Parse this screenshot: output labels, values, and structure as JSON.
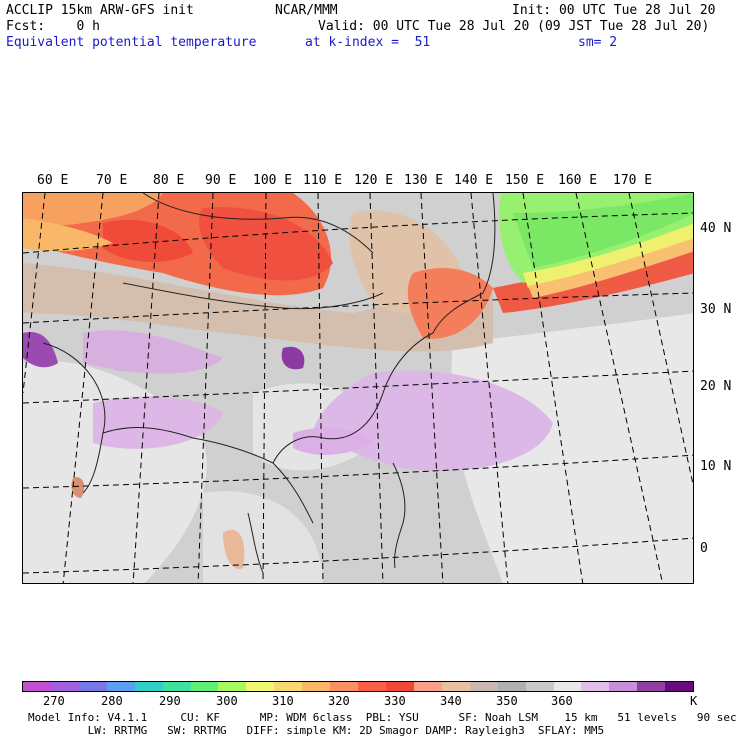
{
  "header": {
    "model_line": "ACCLIP 15km ARW-GFS init",
    "org": "NCAR/MMM",
    "init": "Init: 00 UTC Tue 28 Jul 20",
    "fcst": "Fcst:    0 h",
    "valid": "Valid: 00 UTC Tue 28 Jul 20 (09 JST Tue 28 Jul 20)",
    "variable": "Equivalent potential temperature",
    "level": "at k-index =  51",
    "smoothing": "sm= 2"
  },
  "map": {
    "lon_labels": [
      "60 E",
      "70 E",
      "80 E",
      "90 E",
      "100 E",
      "110 E",
      "120 E",
      "130 E",
      "140 E",
      "150 E",
      "160 E",
      "170 E"
    ],
    "lat_labels": [
      "40 N",
      "30 N",
      "20 N",
      "10 N",
      "0"
    ]
  },
  "colorbar": {
    "colors": [
      "#c050d0",
      "#a060e0",
      "#7878e8",
      "#5aa0f0",
      "#30d0c8",
      "#40e0a0",
      "#60f078",
      "#a8f860",
      "#f0f870",
      "#f8d870",
      "#f8b868",
      "#f89060",
      "#f86048",
      "#f04838",
      "#f8a088",
      "#e8c0a0",
      "#c8b8b0",
      "#b0b0b0",
      "#c8c8c8",
      "#e8e8e8",
      "#e0c0e8",
      "#c890d8",
      "#9040a0",
      "#6a0a80"
    ],
    "tick_labels": [
      "270",
      "280",
      "290",
      "300",
      "310",
      "320",
      "330",
      "340",
      "350",
      "360",
      "K"
    ]
  },
  "footer": {
    "line1": "Model Info: V4.1.1     CU: KF      MP: WDM 6class  PBL: YSU      SF: Noah LSM    15 km   51 levels   90 sec",
    "line2": "         LW: RRTMG   SW: RRTMG   DIFF: simple KM: 2D Smagor DAMP: Rayleigh3  SFLAY: MM5"
  }
}
